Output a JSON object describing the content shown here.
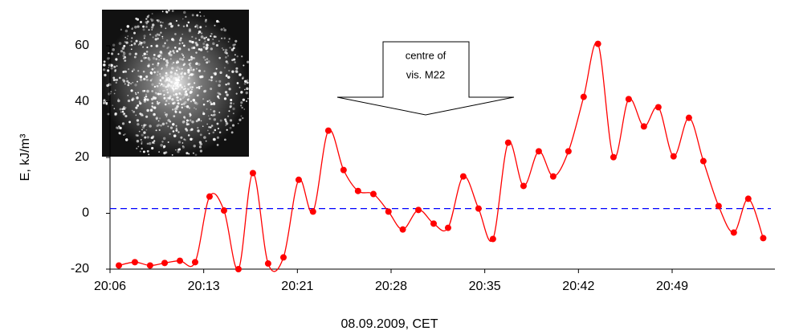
{
  "chart_data": {
    "type": "line",
    "ylabel": "E, kJ/m³",
    "xlabel": "08.09.2009, CET",
    "annotation": [
      "centre of",
      "vis. M22"
    ],
    "xlim": [
      6,
      57.1
    ],
    "ylim": [
      -20,
      60
    ],
    "yticks": [
      -20,
      0,
      20,
      40,
      60
    ],
    "xticks": [
      {
        "value": 6,
        "label": "20:06"
      },
      {
        "value": 13.2,
        "label": "20:13"
      },
      {
        "value": 20.4,
        "label": "20:21"
      },
      {
        "value": 27.6,
        "label": "20:28"
      },
      {
        "value": 34.8,
        "label": "20:35"
      },
      {
        "value": 42,
        "label": "20:42"
      },
      {
        "value": 49.2,
        "label": "20:49"
      }
    ],
    "reference_line": {
      "value": 1.7,
      "color": "#0000ff"
    },
    "series": [
      {
        "color": "#ff0000",
        "x": [
          6.68,
          7.91,
          9.08,
          10.2,
          11.37,
          12.54,
          13.65,
          14.76,
          15.87,
          16.98,
          18.15,
          19.33,
          20.5,
          21.6,
          22.78,
          23.95,
          25.06,
          26.24,
          27.4,
          28.5,
          29.7,
          30.87,
          31.98,
          33.15,
          34.32,
          35.43,
          36.6,
          37.78,
          38.95,
          40.06,
          41.23,
          42.4,
          43.5,
          44.69,
          45.86,
          47.03,
          48.14,
          49.31,
          50.49,
          51.6,
          52.77,
          53.94,
          55.05,
          56.2
        ],
        "values": [
          -18.7,
          -17.5,
          -18.7,
          -17.8,
          -17,
          -17.5,
          6,
          1,
          -20,
          14.4,
          -18,
          -15.8,
          12,
          0.6,
          29.6,
          15.5,
          8,
          6.9,
          0.6,
          -5.8,
          1.2,
          -3.7,
          -5.2,
          13.2,
          1.7,
          -9.2,
          25.3,
          9.8,
          22.2,
          13.2,
          22.2,
          41.7,
          60.7,
          20.1,
          40.9,
          31.1,
          38,
          20.4,
          34.2,
          18.7,
          2.6,
          -6.9,
          5.2,
          -8.9
        ]
      }
    ]
  }
}
